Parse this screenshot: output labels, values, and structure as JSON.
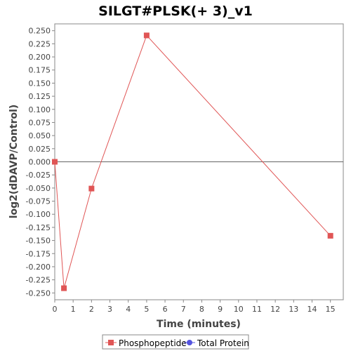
{
  "chart_data": {
    "type": "line",
    "title": "SILGT#PLSK(+ 3)_v1",
    "xlabel": "Time (minutes)",
    "ylabel": "log2(dDAVP/Control)",
    "xlim": [
      0,
      15.7
    ],
    "ylim": [
      -0.263,
      0.263
    ],
    "xticks": [
      0,
      1,
      2,
      3,
      4,
      5,
      6,
      7,
      8,
      9,
      10,
      11,
      12,
      13,
      14,
      15
    ],
    "xtick_labels": [
      "0",
      "1",
      "2",
      "3",
      "4",
      "5",
      "6",
      "7",
      "8",
      "9",
      "10",
      "11",
      "12",
      "13",
      "14",
      "15"
    ],
    "yticks": [
      0.25,
      0.225,
      0.2,
      0.175,
      0.15,
      0.125,
      0.1,
      0.075,
      0.05,
      0.025,
      0,
      -0.025,
      -0.05,
      -0.075,
      -0.1,
      -0.125,
      -0.15,
      -0.175,
      -0.2,
      -0.225,
      -0.25
    ],
    "ytick_labels": [
      "0.250",
      "0.225",
      "0.200",
      "0.175",
      "0.150",
      "0.125",
      "0.100",
      "0.075",
      "0.050",
      "0.025",
      "0.000",
      "-0.025",
      "-0.050",
      "-0.075",
      "-0.100",
      "-0.125",
      "-0.150",
      "-0.175",
      "-0.200",
      "-0.225",
      "-0.250"
    ],
    "grid": false,
    "zero_line": true,
    "legend_position": "bottom",
    "series": [
      {
        "name": "Phosphopeptide",
        "color": "#e05555",
        "marker": "square",
        "x": [
          0,
          0.5,
          2,
          5,
          15
        ],
        "y": [
          0.0,
          -0.241,
          -0.051,
          0.241,
          -0.141
        ]
      },
      {
        "name": "Total Protein",
        "color": "#5555e0",
        "marker": "circle",
        "x": [],
        "y": []
      }
    ]
  }
}
